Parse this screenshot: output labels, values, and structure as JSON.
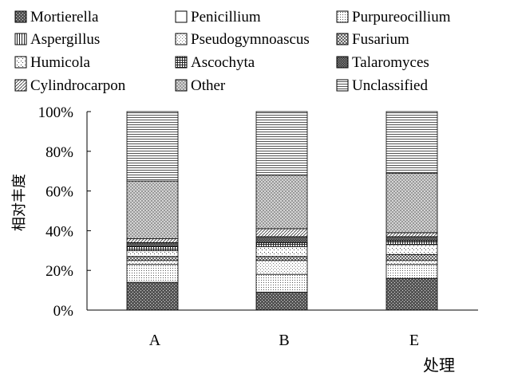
{
  "chart_data": {
    "type": "bar",
    "stacked": true,
    "categories": [
      "A",
      "B",
      "E"
    ],
    "xlabel": "处理",
    "ylabel": "相对丰度",
    "ylim": [
      0,
      100
    ],
    "yticks": [
      0,
      20,
      40,
      60,
      80,
      100
    ],
    "ytick_suffix": "%",
    "legend_position": "top",
    "series": [
      {
        "name": "Mortierella",
        "pattern": "dense",
        "values": [
          14,
          9,
          16
        ]
      },
      {
        "name": "Penicillium",
        "pattern": "white",
        "values": [
          0,
          0,
          0
        ]
      },
      {
        "name": "Purpureocillium",
        "pattern": "dots",
        "values": [
          9,
          9,
          7
        ]
      },
      {
        "name": "Aspergillus",
        "pattern": "vlines",
        "values": [
          0,
          0,
          0
        ]
      },
      {
        "name": "Pseudogymnoascus",
        "pattern": "lightdots",
        "values": [
          2,
          7,
          2
        ]
      },
      {
        "name": "Fusarium",
        "pattern": "cross",
        "values": [
          2,
          2,
          3
        ]
      },
      {
        "name": "Humicola",
        "pattern": "sparse",
        "values": [
          3,
          5,
          5
        ]
      },
      {
        "name": "Ascochyta",
        "pattern": "grid",
        "values": [
          2,
          2,
          2
        ]
      },
      {
        "name": "Talaromyces",
        "pattern": "darkcross",
        "values": [
          2,
          3,
          2
        ]
      },
      {
        "name": "Cylindrocarpon",
        "pattern": "hatch",
        "values": [
          2,
          4,
          2
        ]
      },
      {
        "name": "Other",
        "pattern": "diamonds",
        "values": [
          29,
          27,
          30
        ]
      },
      {
        "name": "Unclassified",
        "pattern": "hlines",
        "values": [
          35,
          32,
          31
        ]
      }
    ]
  }
}
